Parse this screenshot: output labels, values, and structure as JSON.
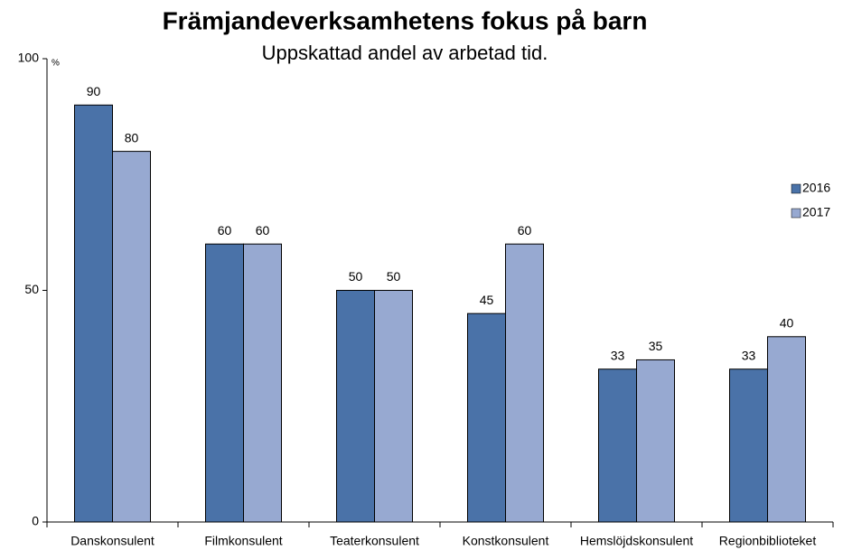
{
  "chart_data": {
    "type": "bar",
    "title": "Främjandeverksamhetens fokus på barn",
    "subtitle": "Uppskattad andel av arbetad tid.",
    "y_unit": "%",
    "categories": [
      "Danskonsulent",
      "Filmkonsulent",
      "Teaterkonsulent",
      "Konstkonsulent",
      "Hemslöjdskonsulent",
      "Regionbiblioteket"
    ],
    "series": [
      {
        "name": "2016",
        "color": "#4a72a8",
        "values": [
          90,
          60,
          50,
          45,
          33,
          33
        ]
      },
      {
        "name": "2017",
        "color": "#97a9d1",
        "values": [
          80,
          60,
          50,
          60,
          35,
          40
        ]
      }
    ],
    "ylim": [
      0,
      100
    ],
    "yticks": [
      0,
      50,
      100
    ],
    "legend": "right"
  }
}
